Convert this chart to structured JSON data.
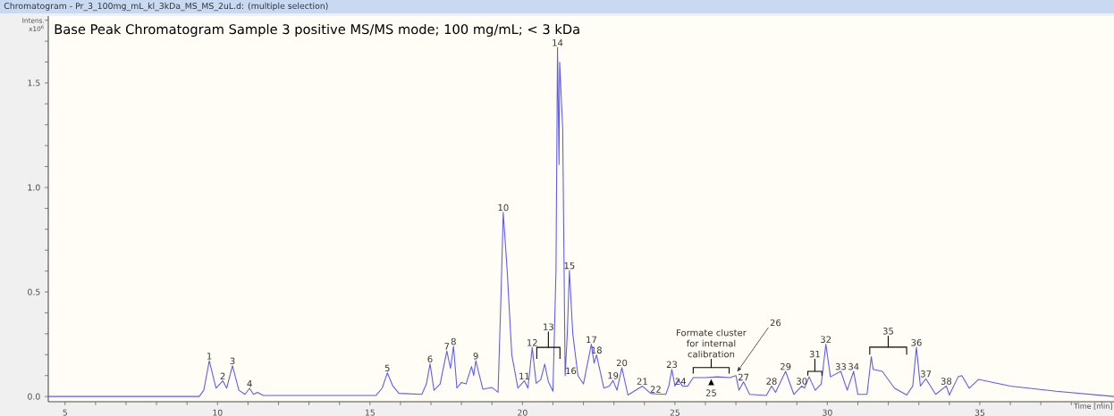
{
  "chart_data": {
    "type": "line",
    "title": "Chromatogram - Pr_3_100mg_mL_kl_3kDa_MS_MS_2uL.d: (multiple selection)",
    "subtitle": "Base Peak Chromatogram Sample 3 positive MS/MS mode; 100 mg/mL; < 3 kDa",
    "xlabel": "Time [min]",
    "ylabel": "Intens. x10$^{6}$",
    "xlim": [
      4.45,
      39.4
    ],
    "ylim": [
      -0.025,
      1.82
    ],
    "xticks": [
      5,
      {
        "value": 6,
        "label": null
      },
      {
        "value": 7,
        "label": null
      },
      {
        "value": 8,
        "label": null
      },
      {
        "value": 9,
        "label": null
      },
      10,
      {
        "value": 11,
        "label": null
      },
      {
        "value": 12,
        "label": null
      },
      {
        "value": 13,
        "label": null
      },
      {
        "value": 14,
        "label": null
      },
      15,
      {
        "value": 16,
        "label": null
      },
      {
        "value": 17,
        "label": null
      },
      {
        "value": 18,
        "label": null
      },
      {
        "value": 19,
        "label": null
      },
      20,
      {
        "value": 21,
        "label": null
      },
      {
        "value": 22,
        "label": null
      },
      {
        "value": 23,
        "label": null
      },
      {
        "value": 24,
        "label": null
      },
      25,
      {
        "value": 26,
        "label": null
      },
      {
        "value": 27,
        "label": null
      },
      {
        "value": 28,
        "label": null
      },
      {
        "value": 29,
        "label": null
      },
      30,
      {
        "value": 31,
        "label": null
      },
      {
        "value": 32,
        "label": null
      },
      {
        "value": 33,
        "label": null
      },
      {
        "value": 34,
        "label": null
      },
      35,
      {
        "value": 36,
        "label": null
      },
      {
        "value": 37,
        "label": null
      },
      {
        "value": 38,
        "label": null
      },
      {
        "value": 39,
        "label": null
      }
    ],
    "yticks": [
      {
        "value": 0,
        "label": "0.0"
      },
      {
        "value": 0.1,
        "label": null
      },
      {
        "value": 0.2,
        "label": null
      },
      {
        "value": 0.3,
        "label": null
      },
      {
        "value": 0.4,
        "label": null
      },
      {
        "value": 0.5,
        "label": "0.5"
      },
      {
        "value": 0.6,
        "label": null
      },
      {
        "value": 0.7,
        "label": null
      },
      {
        "value": 0.8,
        "label": null
      },
      {
        "value": 0.9,
        "label": null
      },
      {
        "value": 1.0,
        "label": "1.0"
      },
      {
        "value": 1.1,
        "label": null
      },
      {
        "value": 1.2,
        "label": null
      },
      {
        "value": 1.3,
        "label": null
      },
      {
        "value": 1.4,
        "label": null
      },
      {
        "value": 1.5,
        "label": "1.5"
      },
      {
        "value": 1.6,
        "label": null
      },
      {
        "value": 1.7,
        "label": null
      },
      {
        "value": 1.8,
        "label": null
      }
    ],
    "grid": false,
    "marker": "none",
    "line_style": "solid",
    "series": [
      {
        "color": "#5c5cf0",
        "x": [
          4.45,
          9.4,
          9.55,
          9.73,
          9.95,
          10.17,
          10.3,
          10.49,
          10.7,
          10.9,
          11.05,
          11.18,
          11.31,
          11.5,
          15.2,
          15.4,
          15.57,
          15.75,
          15.95,
          16.7,
          16.85,
          16.97,
          17.1,
          17.3,
          17.52,
          17.64,
          17.74,
          17.85,
          18.0,
          18.15,
          18.33,
          18.4,
          18.47,
          18.7,
          19.0,
          19.2,
          19.3,
          19.37,
          19.5,
          19.65,
          19.85,
          20.06,
          20.18,
          20.32,
          20.45,
          20.6,
          20.73,
          20.85,
          21.0,
          21.1,
          21.15,
          21.2,
          21.22,
          21.32,
          21.4,
          21.47,
          21.54,
          21.65,
          21.82,
          22.0,
          22.26,
          22.35,
          22.43,
          22.67,
          22.85,
          22.97,
          23.1,
          23.26,
          23.46,
          23.93,
          24.2,
          24.37,
          24.7,
          24.8,
          24.9,
          25.0,
          25.1,
          25.25,
          25.42,
          25.6,
          26.0,
          26.4,
          26.8,
          27.0,
          27.1,
          27.25,
          27.45,
          28.0,
          28.17,
          28.3,
          28.63,
          28.9,
          29.16,
          29.25,
          29.4,
          29.6,
          29.8,
          29.95,
          30.1,
          30.44,
          30.65,
          30.86,
          31.0,
          31.3,
          31.44,
          31.5,
          31.8,
          32.2,
          32.6,
          32.8,
          32.92,
          33.05,
          33.23,
          33.55,
          33.9,
          34.0,
          34.29,
          34.41,
          34.65,
          34.96,
          36.0,
          37.5,
          39.4
        ],
        "values": [
          0.0,
          0.0,
          0.03,
          0.171,
          0.04,
          0.075,
          0.04,
          0.147,
          0.03,
          0.01,
          0.039,
          0.01,
          0.02,
          0.005,
          0.005,
          0.04,
          0.113,
          0.05,
          0.015,
          0.01,
          0.06,
          0.156,
          0.03,
          0.06,
          0.218,
          0.134,
          0.24,
          0.04,
          0.067,
          0.06,
          0.143,
          0.1,
          0.171,
          0.035,
          0.043,
          0.02,
          0.5,
          0.881,
          0.6,
          0.2,
          0.04,
          0.075,
          0.04,
          0.235,
          0.063,
          0.08,
          0.155,
          0.07,
          0.025,
          0.6,
          1.67,
          1.11,
          1.6,
          1.28,
          0.1,
          0.3,
          0.603,
          0.3,
          0.1,
          0.06,
          0.25,
          0.16,
          0.199,
          0.04,
          0.05,
          0.077,
          0.03,
          0.138,
          0.007,
          0.05,
          0.015,
          0.012,
          0.01,
          0.05,
          0.13,
          0.05,
          0.08,
          0.05,
          0.05,
          0.09,
          0.09,
          0.094,
          0.09,
          0.1,
          0.03,
          0.07,
          0.01,
          0.005,
          0.05,
          0.02,
          0.12,
          0.01,
          0.05,
          0.04,
          0.094,
          0.03,
          0.06,
          0.25,
          0.094,
          0.12,
          0.03,
          0.12,
          0.01,
          0.01,
          0.19,
          0.13,
          0.12,
          0.04,
          0.007,
          0.05,
          0.235,
          0.05,
          0.085,
          0.01,
          0.05,
          0.007,
          0.094,
          0.1,
          0.04,
          0.082,
          0.05,
          0.025,
          0.0
        ]
      }
    ],
    "annotations": [
      {
        "text": "1",
        "x": 9.73,
        "y": 0.171
      },
      {
        "text": "2",
        "x": 10.17,
        "y": 0.075
      },
      {
        "text": "3",
        "x": 10.49,
        "y": 0.147
      },
      {
        "text": "4",
        "x": 11.05,
        "y": 0.039
      },
      {
        "text": "5",
        "x": 15.57,
        "y": 0.113
      },
      {
        "text": "6",
        "x": 16.97,
        "y": 0.156
      },
      {
        "text": "7",
        "x": 17.52,
        "y": 0.218
      },
      {
        "text": "8",
        "x": 17.74,
        "y": 0.24
      },
      {
        "text": "9",
        "x": 18.47,
        "y": 0.171
      },
      {
        "text": "10",
        "x": 19.37,
        "y": 0.881
      },
      {
        "text": "11",
        "x": 20.06,
        "y": 0.075
      },
      {
        "text": "12",
        "x": 20.32,
        "y": 0.235
      },
      "13",
      {
        "text": "14",
        "x": 21.15,
        "y": 1.67
      },
      {
        "text": "15",
        "x": 21.54,
        "y": 0.603
      },
      {
        "text": "16",
        "x": 21.82,
        "y": 0.1
      },
      {
        "text": "17",
        "x": 22.26,
        "y": 0.25
      },
      {
        "text": "18",
        "x": 22.43,
        "y": 0.199
      },
      {
        "text": "19",
        "x": 22.97,
        "y": 0.077
      },
      {
        "text": "20",
        "x": 23.26,
        "y": 0.138
      },
      {
        "text": "21",
        "x": 23.93,
        "y": 0.05
      },
      {
        "text": "22",
        "x": 24.37,
        "y": 0.012
      },
      {
        "text": "23",
        "x": 24.9,
        "y": 0.13
      },
      {
        "text": "24",
        "x": 25.42,
        "y": 0.05
      },
      {
        "text": "25",
        "x": 26.19,
        "y": 0.094
      },
      {
        "text": "26",
        "x": 27.0,
        "y": 0.1
      },
      {
        "text": "27",
        "x": 27.25,
        "y": 0.07
      },
      {
        "text": "28",
        "x": 28.17,
        "y": 0.05
      },
      {
        "text": "29",
        "x": 28.63,
        "y": 0.12
      },
      {
        "text": "30",
        "x": 29.16,
        "y": 0.05
      },
      "31",
      {
        "text": "32",
        "x": 29.95,
        "y": 0.25
      },
      {
        "text": "33",
        "x": 30.44,
        "y": 0.12
      },
      {
        "text": "34",
        "x": 30.86,
        "y": 0.12
      },
      "35",
      {
        "text": "36",
        "x": 32.92,
        "y": 0.235
      },
      {
        "text": "37",
        "x": 33.23,
        "y": 0.085
      },
      {
        "text": "38",
        "x": 33.9,
        "y": 0.05
      },
      {
        "text": "Formate cluster for internal calibration",
        "x": 26.19,
        "y": 0.094
      }
    ]
  }
}
